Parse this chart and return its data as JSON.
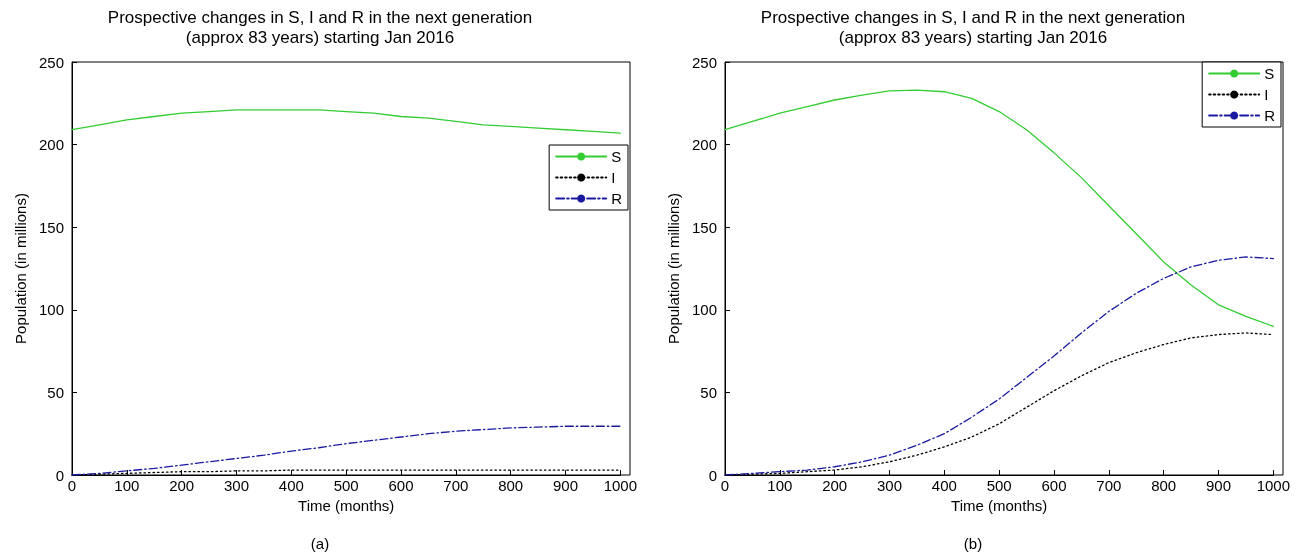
{
  "chart_data": [
    {
      "type": "line",
      "title": "Prospective changes in S, I and R in the next generation\n(approx 83 years) starting Jan 2016",
      "xlabel": "Time (months)",
      "ylabel": "Population (in millions)",
      "annotations": [
        "(a)"
      ],
      "x": [
        0,
        50,
        100,
        150,
        200,
        250,
        300,
        350,
        400,
        450,
        500,
        550,
        600,
        650,
        700,
        750,
        800,
        850,
        900,
        950,
        1000
      ],
      "xlim": [
        0,
        1000
      ],
      "xticks": [
        0,
        100,
        200,
        300,
        400,
        500,
        600,
        700,
        800,
        900,
        1000
      ],
      "ylim": [
        0,
        250
      ],
      "yticks": [
        0,
        50,
        100,
        150,
        200,
        250
      ],
      "grid": false,
      "legend": "right",
      "marker": "none",
      "series": [
        {
          "name": "S",
          "color": "#33cc33",
          "line_style": "solid",
          "values": [
            209,
            212,
            215,
            217,
            219,
            220,
            221,
            221,
            221,
            221,
            220,
            219,
            217,
            216,
            214,
            212,
            211,
            210,
            209,
            208,
            207
          ]
        },
        {
          "name": "I",
          "color": "#000000",
          "line_style": "dotted",
          "values": [
            0,
            0.5,
            1,
            1.5,
            2,
            2,
            2.5,
            2.5,
            3,
            3,
            3,
            3,
            3,
            3,
            3,
            3,
            3,
            3,
            3,
            3,
            3
          ]
        },
        {
          "name": "R",
          "color": "#1a1aa0",
          "line_style": "dashdot",
          "values": [
            0,
            1,
            2.5,
            4,
            6,
            8,
            10,
            12,
            14.5,
            16.5,
            19,
            21,
            23,
            25,
            26.5,
            27.5,
            28.5,
            29,
            29.5,
            29.5,
            29.5
          ]
        }
      ]
    },
    {
      "type": "line",
      "title": "Prospective changes in S, I and R in the next generation\n(approx 83 years) starting Jan 2016",
      "xlabel": "Time (months)",
      "ylabel": "Population (in millions)",
      "annotations": [
        "(b)"
      ],
      "x": [
        0,
        50,
        100,
        150,
        200,
        250,
        300,
        350,
        400,
        450,
        500,
        550,
        600,
        650,
        700,
        750,
        800,
        850,
        900,
        950,
        1000
      ],
      "xlim": [
        0,
        1000
      ],
      "xticks": [
        0,
        100,
        200,
        300,
        400,
        500,
        600,
        700,
        800,
        900,
        1000
      ],
      "ylim": [
        0,
        250
      ],
      "yticks": [
        0,
        50,
        100,
        150,
        200,
        250
      ],
      "grid": false,
      "legend": "top right",
      "marker": "none",
      "series": [
        {
          "name": "S",
          "color": "#33cc33",
          "line_style": "solid",
          "values": [
            209,
            214,
            219,
            223,
            227,
            230,
            232.5,
            233,
            232,
            228,
            220,
            209,
            195,
            180,
            163,
            146,
            129,
            115,
            103,
            96,
            90
          ]
        },
        {
          "name": "I",
          "color": "#000000",
          "line_style": "dotted",
          "values": [
            0,
            0.5,
            1,
            2,
            3,
            5,
            8,
            12,
            17,
            23,
            31,
            41,
            51,
            60,
            68,
            74,
            79,
            83,
            85,
            86,
            85
          ]
        },
        {
          "name": "R",
          "color": "#1a1aa0",
          "line_style": "dashdot",
          "values": [
            0,
            1,
            2,
            3,
            5,
            8,
            12,
            18,
            25,
            35,
            46,
            59,
            72,
            86,
            99,
            110,
            119,
            126,
            130,
            132,
            131
          ]
        }
      ]
    }
  ]
}
